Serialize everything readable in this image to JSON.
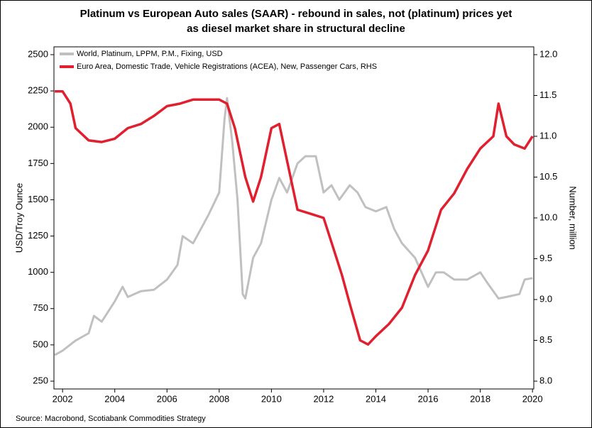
{
  "chart_data": {
    "type": "line",
    "title": "Platinum vs European Auto sales (SAAR) - rebound in sales, not (platinum) prices yet",
    "subtitle": "as diesel market share in structural decline",
    "y_label": "USD/Troy Ounce",
    "y2_label": "Number, million",
    "source": "Source: Macrobond, Scotiabank Commodities Strategy",
    "legend": "upper left",
    "grid": false,
    "xlim": [
      2001.67,
      2020.05
    ],
    "xticks": [
      2002,
      2004,
      2006,
      2008,
      2010,
      2012,
      2014,
      2016,
      2018,
      2020
    ],
    "ylim": [
      250,
      2500
    ],
    "yticks": [
      250,
      500,
      750,
      1000,
      1250,
      1500,
      1750,
      2000,
      2250,
      2500
    ],
    "y2lim": [
      8,
      12
    ],
    "y2ticks": [
      {
        "value": 8,
        "label": "8.0"
      },
      8.5,
      {
        "value": 9,
        "label": "9.0"
      },
      9.5,
      {
        "value": 10,
        "label": "10.0"
      },
      10.5,
      {
        "value": 11,
        "label": "11.0"
      },
      11.5,
      {
        "value": 12,
        "label": "12.0"
      }
    ],
    "series": [
      {
        "name": "World, Platinum, LPPM, P.M., Fixing, USD",
        "color": "#c0c0c0",
        "x": [
          2001.7,
          2002,
          2002.5,
          2003,
          2003.2,
          2003.5,
          2004,
          2004.3,
          2004.5,
          2005,
          2005.5,
          2006,
          2006.4,
          2006.6,
          2007,
          2007.3,
          2007.6,
          2008,
          2008.2,
          2008.3,
          2008.5,
          2008.7,
          2008.9,
          2009,
          2009.3,
          2009.6,
          2010,
          2010.3,
          2010.6,
          2011,
          2011.3,
          2011.7,
          2012,
          2012.3,
          2012.6,
          2013,
          2013.3,
          2013.6,
          2014,
          2014.4,
          2014.7,
          2015,
          2015.5,
          2016,
          2016.3,
          2016.6,
          2017,
          2017.5,
          2018,
          2018.3,
          2018.7,
          2019,
          2019.5,
          2019.7,
          2020
        ],
        "values": [
          430,
          460,
          530,
          580,
          700,
          660,
          800,
          900,
          830,
          870,
          880,
          950,
          1050,
          1250,
          1200,
          1300,
          1400,
          1550,
          2050,
          2200,
          1900,
          1500,
          850,
          820,
          1100,
          1200,
          1500,
          1650,
          1550,
          1750,
          1800,
          1800,
          1550,
          1600,
          1500,
          1600,
          1550,
          1450,
          1420,
          1450,
          1300,
          1200,
          1100,
          900,
          1000,
          1000,
          950,
          950,
          1000,
          920,
          820,
          830,
          850,
          950,
          960
        ]
      },
      {
        "name": "Euro Area, Domestic Trade, Vehicle Registrations (ACEA), New, Passenger Cars, RHS",
        "color": "#e0202f",
        "axis": "y2",
        "x": [
          2001.7,
          2002,
          2002.3,
          2002.5,
          2003,
          2003.5,
          2004,
          2004.5,
          2005,
          2005.5,
          2006,
          2006.5,
          2007,
          2007.5,
          2008,
          2008.3,
          2008.6,
          2009,
          2009.3,
          2009.6,
          2010,
          2010.3,
          2010.6,
          2011,
          2011.5,
          2012,
          2012.3,
          2012.7,
          2013,
          2013.4,
          2013.7,
          2014,
          2014.5,
          2015,
          2015.5,
          2016,
          2016.5,
          2017,
          2017.5,
          2018,
          2018.5,
          2018.7,
          2019,
          2019.3,
          2019.7,
          2020
        ],
        "values": [
          11.55,
          11.55,
          11.4,
          11.1,
          10.95,
          10.93,
          10.97,
          11.1,
          11.15,
          11.25,
          11.37,
          11.4,
          11.45,
          11.45,
          11.45,
          11.4,
          11.1,
          10.5,
          10.2,
          10.5,
          11.1,
          11.15,
          10.7,
          10.1,
          10.05,
          10.0,
          9.7,
          9.3,
          8.95,
          8.5,
          8.45,
          8.55,
          8.7,
          8.9,
          9.3,
          9.6,
          10.1,
          10.3,
          10.6,
          10.85,
          11.0,
          11.4,
          11.0,
          10.9,
          10.85,
          11.0
        ]
      }
    ]
  }
}
